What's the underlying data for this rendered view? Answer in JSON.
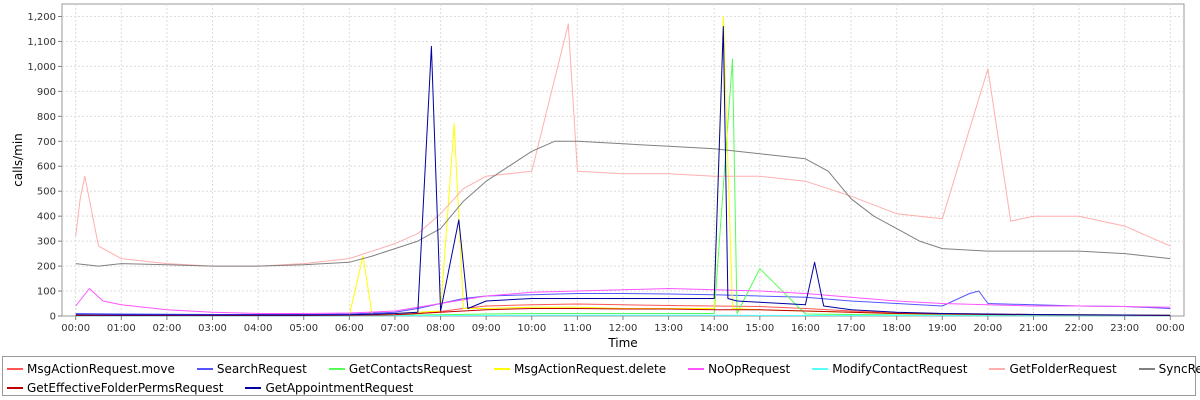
{
  "chart_data": {
    "type": "line",
    "title": "",
    "xlabel": "Time",
    "ylabel": "calls/min",
    "ylim": [
      0,
      1250
    ],
    "y_ticks": [
      "0",
      "100",
      "200",
      "300",
      "400",
      "500",
      "600",
      "700",
      "800",
      "900",
      "1,000",
      "1,100",
      "1,200"
    ],
    "x_ticks": [
      "00:00",
      "01:00",
      "02:00",
      "03:00",
      "04:00",
      "05:00",
      "06:00",
      "07:00",
      "08:00",
      "09:00",
      "10:00",
      "11:00",
      "12:00",
      "13:00",
      "14:00",
      "15:00",
      "16:00",
      "17:00",
      "18:00",
      "19:00",
      "20:00",
      "21:00",
      "22:00",
      "23:00",
      "00:00"
    ],
    "x_unit": "hour of day",
    "xlim": [
      -0.3,
      24.3
    ],
    "grid": true,
    "legend_position": "bottom",
    "series": [
      {
        "name": "MsgActionRequest.move",
        "color": "#ff5555",
        "x": [
          0,
          1,
          2,
          3,
          4,
          5,
          6,
          7,
          7.5,
          8,
          8.5,
          9,
          10,
          11,
          12,
          13,
          14,
          15,
          16,
          17,
          18,
          19,
          20,
          21,
          22,
          23,
          24
        ],
        "y": [
          3,
          2,
          2,
          2,
          2,
          2,
          3,
          5,
          10,
          18,
          30,
          40,
          45,
          48,
          45,
          42,
          40,
          38,
          30,
          20,
          12,
          10,
          8,
          6,
          5,
          4,
          3
        ]
      },
      {
        "name": "SearchRequest",
        "color": "#5555ff",
        "x": [
          0,
          1,
          2,
          3,
          4,
          5,
          6,
          7,
          7.5,
          8,
          8.5,
          9,
          10,
          11,
          12,
          13,
          14,
          15,
          16,
          17,
          18,
          19,
          19.6,
          19.8,
          20,
          21,
          22,
          23,
          24
        ],
        "y": [
          10,
          8,
          7,
          6,
          6,
          6,
          8,
          15,
          30,
          50,
          70,
          80,
          85,
          90,
          90,
          88,
          85,
          80,
          75,
          60,
          50,
          40,
          90,
          100,
          50,
          45,
          40,
          38,
          30
        ]
      },
      {
        "name": "GetContactsRequest",
        "color": "#55ff55",
        "x": [
          0,
          1,
          2,
          3,
          4,
          5,
          6,
          7,
          8,
          9,
          10,
          11,
          12,
          13,
          14,
          14.4,
          14.5,
          15,
          16,
          17,
          18,
          19,
          20,
          21,
          22,
          23,
          24
        ],
        "y": [
          2,
          2,
          2,
          2,
          2,
          2,
          2,
          3,
          5,
          8,
          10,
          10,
          10,
          10,
          10,
          1030,
          10,
          190,
          8,
          6,
          4,
          3,
          3,
          3,
          2,
          2,
          2
        ]
      },
      {
        "name": "MsgActionRequest.delete",
        "color": "#ffff00",
        "x": [
          0,
          1,
          2,
          3,
          4,
          5,
          6,
          6.3,
          6.5,
          7,
          8,
          8.3,
          8.5,
          9,
          10,
          11,
          12,
          13,
          14,
          14.2,
          14.4,
          15,
          16,
          17,
          18,
          19,
          20,
          21,
          22,
          23,
          24
        ],
        "y": [
          5,
          3,
          3,
          3,
          2,
          2,
          3,
          240,
          5,
          10,
          20,
          770,
          30,
          30,
          35,
          35,
          30,
          30,
          30,
          1200,
          30,
          25,
          20,
          15,
          10,
          8,
          6,
          5,
          5,
          4,
          3
        ]
      },
      {
        "name": "NoOpRequest",
        "color": "#ff55ff",
        "x": [
          0,
          0.3,
          0.6,
          1,
          1.5,
          2,
          3,
          4,
          5,
          6,
          7,
          8,
          9,
          10,
          11,
          12,
          13,
          14,
          15,
          16,
          17,
          18,
          19,
          20,
          21,
          22,
          23,
          24
        ],
        "y": [
          40,
          110,
          60,
          45,
          35,
          25,
          15,
          10,
          10,
          12,
          20,
          50,
          80,
          95,
          100,
          105,
          110,
          105,
          100,
          90,
          75,
          60,
          50,
          45,
          40,
          40,
          38,
          35
        ]
      },
      {
        "name": "ModifyContactRequest",
        "color": "#55ffff",
        "x": [
          0,
          2,
          4,
          6,
          8,
          10,
          12,
          14,
          16,
          18,
          20,
          22,
          24
        ],
        "y": [
          1,
          1,
          1,
          1,
          2,
          3,
          3,
          3,
          2,
          2,
          1,
          1,
          1
        ]
      },
      {
        "name": "GetFolderRequest",
        "color": "#ffafaf",
        "x": [
          0,
          0.1,
          0.2,
          0.5,
          1,
          2,
          3,
          4,
          5,
          6,
          7,
          7.5,
          8,
          8.5,
          9,
          10,
          10.8,
          11,
          12,
          13,
          14,
          15,
          16,
          17,
          18,
          19,
          20,
          20.5,
          21,
          22,
          23,
          24
        ],
        "y": [
          320,
          470,
          560,
          280,
          230,
          210,
          200,
          200,
          210,
          230,
          290,
          330,
          410,
          510,
          560,
          580,
          1170,
          580,
          570,
          570,
          560,
          560,
          540,
          480,
          410,
          390,
          990,
          380,
          400,
          400,
          360,
          280
        ]
      },
      {
        "name": "SyncRequest",
        "color": "#808080",
        "x": [
          0,
          0.5,
          1,
          2,
          3,
          4,
          5,
          6,
          6.5,
          7,
          7.5,
          8,
          8.5,
          9,
          9.5,
          10,
          10.5,
          11,
          12,
          13,
          14,
          15,
          16,
          16.5,
          17,
          17.5,
          18,
          18.5,
          19,
          20,
          21,
          22,
          23,
          24
        ],
        "y": [
          210,
          200,
          210,
          205,
          200,
          200,
          205,
          215,
          240,
          270,
          300,
          350,
          460,
          540,
          600,
          660,
          700,
          700,
          690,
          680,
          670,
          650,
          630,
          580,
          470,
          400,
          350,
          300,
          270,
          260,
          260,
          260,
          250,
          230
        ]
      },
      {
        "name": "GetEffectiveFolderPermsRequest",
        "color": "#c00000",
        "x": [
          0,
          1,
          2,
          3,
          4,
          5,
          6,
          7,
          8,
          9,
          10,
          11,
          12,
          13,
          14,
          15,
          16,
          17,
          18,
          19,
          20,
          21,
          22,
          23,
          24
        ],
        "y": [
          2,
          2,
          2,
          2,
          2,
          2,
          3,
          5,
          15,
          25,
          30,
          30,
          28,
          28,
          25,
          25,
          20,
          15,
          10,
          8,
          6,
          5,
          4,
          3,
          2
        ]
      },
      {
        "name": "GetAppointmentRequest",
        "color": "#0000a0",
        "x": [
          0,
          1,
          2,
          3,
          4,
          5,
          6,
          7,
          7.5,
          7.8,
          8,
          8.4,
          8.6,
          9,
          10,
          11,
          12,
          13,
          14,
          14.2,
          14.3,
          14.5,
          15,
          16,
          16.2,
          16.4,
          17,
          18,
          19,
          20,
          21,
          22,
          23,
          24
        ],
        "y": [
          5,
          4,
          4,
          4,
          4,
          4,
          5,
          10,
          15,
          1080,
          20,
          385,
          30,
          60,
          70,
          70,
          70,
          70,
          70,
          1160,
          70,
          60,
          55,
          45,
          215,
          40,
          25,
          15,
          10,
          8,
          6,
          5,
          4,
          3
        ]
      }
    ]
  }
}
